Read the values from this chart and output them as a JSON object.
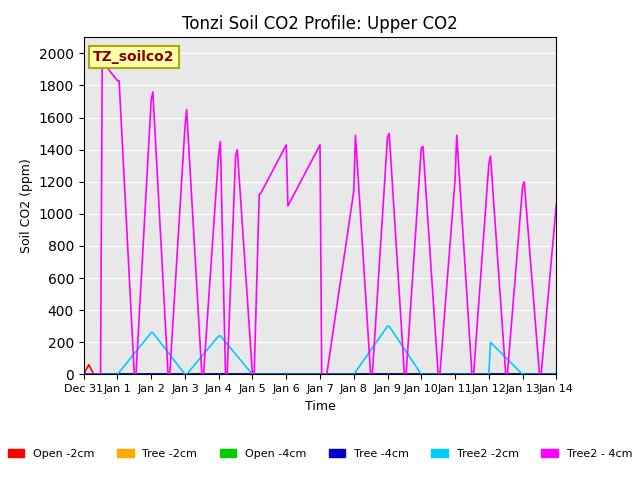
{
  "title": "Tonzi Soil CO2 Profile: Upper CO2",
  "xlabel": "Time",
  "ylabel": "Soil CO2 (ppm)",
  "annotation": "TZ_soilco2",
  "ylim": [
    0,
    2100
  ],
  "yticks": [
    0,
    200,
    400,
    600,
    800,
    1000,
    1200,
    1400,
    1600,
    1800,
    2000
  ],
  "xtick_labels": [
    "Dec 31",
    "Jan 1",
    "Jan 2",
    "Jan 3",
    "Jan 4",
    "Jan 5",
    "Jan 6",
    "Jan 7",
    "Jan 8",
    "Jan 9",
    "Jan 10",
    "Jan 11",
    "Jan 12",
    "Jan 13",
    "Jan 14"
  ],
  "background_color": "#e8e8e8",
  "series": {
    "Open -2cm": {
      "color": "#ff0000",
      "x": [
        0,
        0.15,
        0.3,
        1.0,
        2.0,
        2.1,
        3.0,
        4.0,
        5.0,
        6.0,
        7.0,
        8.0,
        9.0,
        9.1,
        10.0,
        11.0,
        12.0,
        13.0,
        14.0
      ],
      "y": [
        0,
        60,
        0,
        0,
        0,
        0,
        0,
        0,
        0,
        0,
        0,
        0,
        0,
        0,
        0,
        0,
        0,
        0,
        0
      ]
    },
    "Tree -2cm": {
      "color": "#ffaa00",
      "x": [
        0,
        0.5,
        1.0,
        2.0,
        3.0,
        4.0,
        5.0,
        6.0,
        7.0,
        8.0,
        9.0,
        10.0,
        11.0,
        12.0,
        13.0,
        14.0
      ],
      "y": [
        0,
        0,
        0,
        0,
        0,
        0,
        0,
        0,
        0,
        0,
        0,
        0,
        0,
        0,
        0,
        0
      ]
    },
    "Open -4cm": {
      "color": "#00cc00",
      "x": [
        0,
        0.5,
        1.0,
        2.0,
        3.0,
        4.0,
        5.0,
        6.0,
        7.0,
        8.0,
        9.0,
        10.0,
        11.0,
        12.0,
        13.0,
        14.0
      ],
      "y": [
        0,
        0,
        0,
        0,
        0,
        0,
        0,
        0,
        0,
        0,
        0,
        0,
        0,
        0,
        0,
        0
      ]
    },
    "Tree -4cm": {
      "color": "#0000cc",
      "x": [
        0,
        0.5,
        1.0,
        2.0,
        3.0,
        4.0,
        5.0,
        6.0,
        7.0,
        8.0,
        9.0,
        10.0,
        11.0,
        12.0,
        13.0,
        14.0
      ],
      "y": [
        0,
        0,
        0,
        0,
        0,
        0,
        0,
        0,
        0,
        0,
        0,
        0,
        0,
        0,
        0,
        0
      ]
    },
    "Tree2 -2cm": {
      "color": "#00ccff",
      "x": [
        0,
        1.0,
        2.0,
        2.05,
        3.0,
        3.05,
        4.0,
        4.05,
        5.0,
        6.0,
        7.0,
        8.0,
        9.0,
        9.05,
        10.0,
        11.0,
        12.0,
        12.05,
        13.0,
        14.0
      ],
      "y": [
        0,
        0,
        260,
        260,
        0,
        0,
        240,
        240,
        0,
        0,
        0,
        0,
        300,
        300,
        0,
        0,
        0,
        200,
        0,
        0
      ]
    },
    "Tree2 - 4cm": {
      "color": "#ff00ff",
      "x": [
        0.0,
        0.5,
        0.55,
        1.0,
        1.05,
        1.5,
        1.55,
        2.0,
        2.05,
        2.5,
        2.55,
        3.0,
        3.05,
        3.5,
        3.55,
        4.0,
        4.05,
        4.2,
        4.25,
        4.5,
        4.55,
        5.0,
        5.05,
        5.2,
        5.25,
        6.0,
        6.05,
        7.0,
        7.05,
        7.2,
        8.0,
        8.05,
        8.5,
        8.55,
        9.0,
        9.05,
        9.5,
        9.55,
        10.0,
        10.05,
        10.5,
        10.55,
        11.0,
        11.05,
        11.5,
        11.55,
        12.0,
        12.05,
        12.5,
        12.55,
        13.0,
        13.05,
        13.5,
        13.55,
        14.0
      ],
      "y": [
        0,
        0,
        1950,
        1830,
        1830,
        0,
        0,
        1710,
        1760,
        0,
        0,
        1540,
        1650,
        0,
        0,
        1380,
        1450,
        0,
        0,
        1360,
        1400,
        0,
        0,
        1120,
        1130,
        1430,
        1050,
        1430,
        0,
        0,
        1140,
        1490,
        0,
        0,
        1480,
        1500,
        0,
        0,
        1410,
        1420,
        0,
        0,
        1210,
        1490,
        0,
        0,
        1310,
        1360,
        0,
        0,
        1170,
        1200,
        0,
        0,
        1060
      ]
    }
  },
  "legend": {
    "Open -2cm": "#ff0000",
    "Tree -2cm": "#ffaa00",
    "Open -4cm": "#00cc00",
    "Tree -4cm": "#0000cc",
    "Tree2 -2cm": "#00ccff",
    "Tree2 - 4cm": "#ff00ff"
  }
}
